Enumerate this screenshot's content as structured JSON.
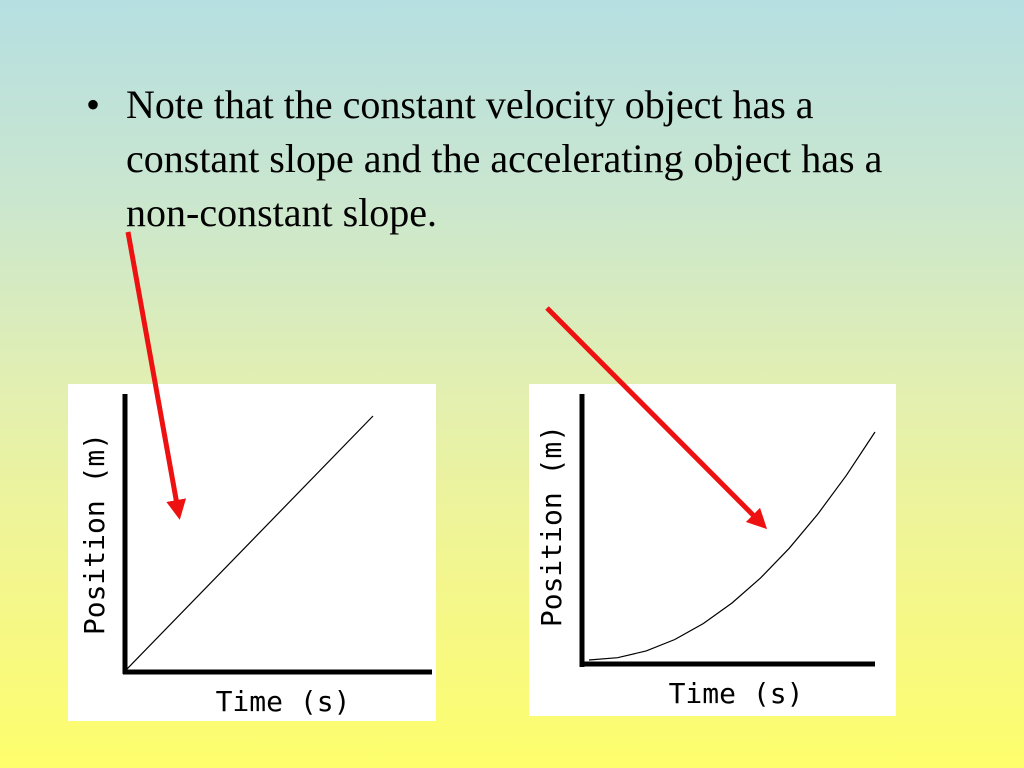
{
  "slide": {
    "bullet": "Note that the constant velocity object has a constant slope and the accelerating object has a non-constant slope."
  },
  "colors": {
    "arrow": "#ee1111",
    "axis": "#000000",
    "panel": "#ffffff"
  },
  "chart_data": [
    {
      "type": "line",
      "title": "",
      "xlabel": "Time (s)",
      "ylabel": "Position (m)",
      "grid": false,
      "series": [
        {
          "x": [
            0,
            1
          ],
          "values": [
            0,
            1
          ]
        }
      ]
    },
    {
      "type": "line",
      "title": "",
      "xlabel": "Time (s)",
      "ylabel": "Position (m)",
      "grid": false,
      "series": [
        {
          "x": [
            0,
            0.1,
            0.2,
            0.3,
            0.4,
            0.5,
            0.6,
            0.7,
            0.8,
            0.9,
            1.0
          ],
          "values": [
            0,
            0.01,
            0.04,
            0.09,
            0.16,
            0.25,
            0.36,
            0.49,
            0.64,
            0.81,
            1.0
          ]
        }
      ]
    }
  ]
}
